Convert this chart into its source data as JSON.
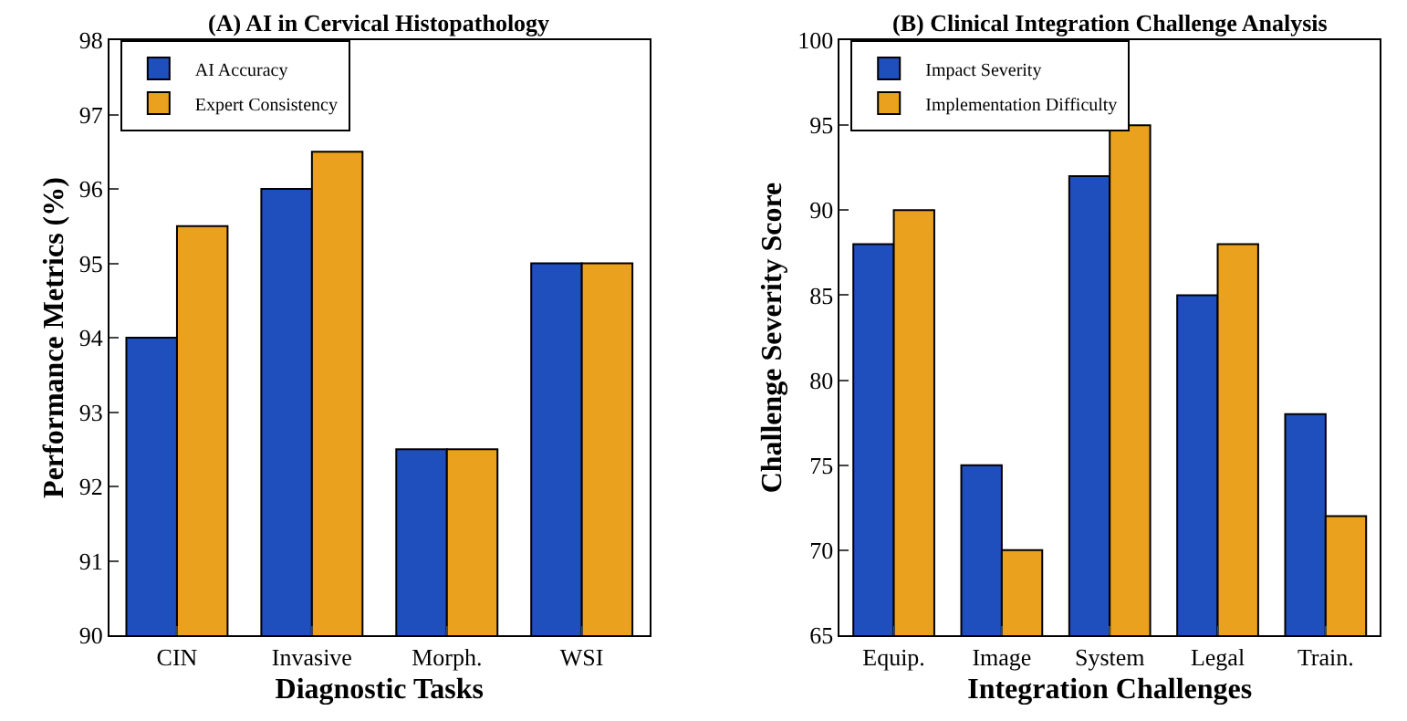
{
  "chart_data": [
    {
      "type": "bar",
      "title": "(A) AI in Cervical Histopathology",
      "xlabel": "Diagnostic Tasks",
      "ylabel": "Performance Metrics (%)",
      "categories": [
        "CIN",
        "Invasive",
        "Morph.",
        "WSI"
      ],
      "series": [
        {
          "name": "AI Accuracy",
          "color": "#1f4ebd",
          "values": [
            94,
            96,
            92.5,
            95
          ]
        },
        {
          "name": "Expert Consistency",
          "color": "#eaa11d",
          "values": [
            95.5,
            96.5,
            92.5,
            95
          ]
        }
      ],
      "ylim": [
        90,
        98
      ],
      "yticks": [
        90,
        91,
        92,
        93,
        94,
        95,
        96,
        97,
        98
      ],
      "legend": "top left"
    },
    {
      "type": "bar",
      "title": "(B) Clinical Integration Challenge Analysis",
      "xlabel": "Integration Challenges",
      "ylabel": "Challenge Severity Score",
      "categories": [
        "Equip.",
        "Image",
        "System",
        "Legal",
        "Train."
      ],
      "series": [
        {
          "name": "Impact Severity",
          "color": "#1f4ebd",
          "values": [
            88,
            75,
            92,
            85,
            78
          ]
        },
        {
          "name": "Implementation Difficulty",
          "color": "#eaa11d",
          "values": [
            90,
            70,
            95,
            88,
            72
          ]
        }
      ],
      "ylim": [
        65,
        100
      ],
      "yticks": [
        65,
        70,
        75,
        80,
        85,
        90,
        95,
        100
      ],
      "legend": "top left"
    }
  ]
}
